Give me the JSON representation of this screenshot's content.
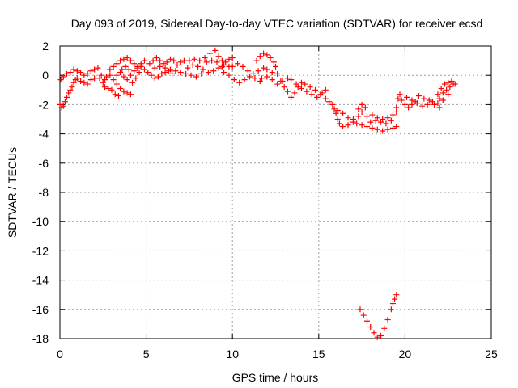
{
  "chart_data": {
    "type": "scatter",
    "title": "Day 093 of 2019, Sidereal Day-to-day VTEC variation (SDTVAR) for receiver ecsd",
    "xlabel": "GPS time / hours",
    "ylabel": "SDTVAR / TECUs",
    "xlim": [
      0,
      25
    ],
    "ylim": [
      -18,
      2
    ],
    "xticks": [
      0,
      5,
      10,
      15,
      20,
      25
    ],
    "yticks": [
      2,
      0,
      -2,
      -4,
      -6,
      -8,
      -10,
      -12,
      -14,
      -16,
      -18
    ],
    "grid": true,
    "series_color": "#ff0000",
    "marker": "plus",
    "series": [
      {
        "name": "SDTVAR",
        "points": [
          [
            0.0,
            -2.0
          ],
          [
            0.1,
            -2.2
          ],
          [
            0.2,
            -2.1
          ],
          [
            0.3,
            -1.8
          ],
          [
            0.4,
            -1.5
          ],
          [
            0.5,
            -1.2
          ],
          [
            0.6,
            -1.0
          ],
          [
            0.7,
            -0.8
          ],
          [
            0.8,
            -0.5
          ],
          [
            0.9,
            -0.3
          ],
          [
            0.05,
            -0.3
          ],
          [
            0.2,
            -0.1
          ],
          [
            0.4,
            0.1
          ],
          [
            0.6,
            0.2
          ],
          [
            0.8,
            0.4
          ],
          [
            1.0,
            0.3
          ],
          [
            1.2,
            0.2
          ],
          [
            1.4,
            0.0
          ],
          [
            1.6,
            0.1
          ],
          [
            1.8,
            0.3
          ],
          [
            2.0,
            0.4
          ],
          [
            2.2,
            0.5
          ],
          [
            1.0,
            -0.2
          ],
          [
            1.2,
            -0.4
          ],
          [
            1.4,
            -0.5
          ],
          [
            1.6,
            -0.6
          ],
          [
            1.8,
            -0.3
          ],
          [
            2.0,
            -0.2
          ],
          [
            2.3,
            -0.2
          ],
          [
            2.6,
            -0.3
          ],
          [
            2.4,
            0.0
          ],
          [
            2.5,
            -0.5
          ],
          [
            2.7,
            -0.1
          ],
          [
            2.9,
            0.0
          ],
          [
            3.1,
            -0.3
          ],
          [
            3.3,
            -0.6
          ],
          [
            3.5,
            -0.9
          ],
          [
            3.7,
            -1.1
          ],
          [
            3.9,
            -1.2
          ],
          [
            4.1,
            -1.3
          ],
          [
            2.6,
            -0.8
          ],
          [
            2.8,
            -0.9
          ],
          [
            3.0,
            -1.0
          ],
          [
            3.2,
            -1.3
          ],
          [
            3.4,
            -1.4
          ],
          [
            2.9,
            0.4
          ],
          [
            3.1,
            0.6
          ],
          [
            3.3,
            0.8
          ],
          [
            3.5,
            1.0
          ],
          [
            3.7,
            1.1
          ],
          [
            3.9,
            1.2
          ],
          [
            4.1,
            1.0
          ],
          [
            4.3,
            0.8
          ],
          [
            4.5,
            0.6
          ],
          [
            4.7,
            0.8
          ],
          [
            4.9,
            1.0
          ],
          [
            3.5,
            0.2
          ],
          [
            3.7,
            -0.1
          ],
          [
            3.9,
            -0.3
          ],
          [
            4.1,
            0.0
          ],
          [
            4.3,
            0.3
          ],
          [
            4.5,
            0.5
          ],
          [
            4.6,
            0.2
          ],
          [
            4.4,
            -0.2
          ],
          [
            4.2,
            -0.5
          ],
          [
            3.3,
            0.0
          ],
          [
            3.6,
            0.4
          ],
          [
            3.8,
            0.6
          ],
          [
            4.0,
            0.4
          ],
          [
            4.7,
            0.6
          ],
          [
            4.9,
            0.4
          ],
          [
            5.1,
            0.2
          ],
          [
            5.3,
            0.0
          ],
          [
            5.5,
            -0.2
          ],
          [
            5.7,
            -0.1
          ],
          [
            5.9,
            0.1
          ],
          [
            6.1,
            0.2
          ],
          [
            6.3,
            0.3
          ],
          [
            6.5,
            0.1
          ],
          [
            5.2,
            0.8
          ],
          [
            5.4,
            1.0
          ],
          [
            5.6,
            1.2
          ],
          [
            5.8,
            1.0
          ],
          [
            6.0,
            0.8
          ],
          [
            6.2,
            0.9
          ],
          [
            6.4,
            1.1
          ],
          [
            6.6,
            1.0
          ],
          [
            6.8,
            0.7
          ],
          [
            7.0,
            0.9
          ],
          [
            7.2,
            1.0
          ],
          [
            5.5,
            0.5
          ],
          [
            5.8,
            0.6
          ],
          [
            6.1,
            0.5
          ],
          [
            6.4,
            0.4
          ],
          [
            6.7,
            0.3
          ],
          [
            7.0,
            0.2
          ],
          [
            7.3,
            0.1
          ],
          [
            7.6,
            0.0
          ],
          [
            7.9,
            -0.1
          ],
          [
            8.2,
            0.1
          ],
          [
            7.4,
            0.5
          ],
          [
            7.7,
            0.7
          ],
          [
            8.0,
            0.6
          ],
          [
            8.3,
            0.4
          ],
          [
            8.6,
            0.2
          ],
          [
            8.9,
            0.3
          ],
          [
            9.2,
            0.5
          ],
          [
            9.5,
            0.7
          ],
          [
            9.8,
            0.6
          ],
          [
            7.5,
            1.0
          ],
          [
            7.8,
            1.1
          ],
          [
            8.1,
            1.0
          ],
          [
            8.4,
            1.2
          ],
          [
            8.7,
            1.5
          ],
          [
            9.0,
            1.7
          ],
          [
            9.2,
            1.3
          ],
          [
            9.4,
            1.0
          ],
          [
            9.6,
            0.9
          ],
          [
            9.8,
            1.1
          ],
          [
            10.0,
            1.2
          ],
          [
            8.5,
            0.9
          ],
          [
            8.8,
            1.0
          ],
          [
            9.1,
            0.9
          ],
          [
            9.4,
            0.6
          ],
          [
            9.5,
            0.2
          ],
          [
            9.8,
            0.0
          ],
          [
            10.1,
            -0.3
          ],
          [
            10.4,
            -0.5
          ],
          [
            10.7,
            -0.3
          ],
          [
            11.0,
            -0.1
          ],
          [
            11.3,
            -0.2
          ],
          [
            11.6,
            -0.4
          ],
          [
            10.0,
            0.6
          ],
          [
            10.3,
            0.8
          ],
          [
            10.6,
            0.6
          ],
          [
            10.9,
            0.3
          ],
          [
            11.2,
            0.1
          ],
          [
            11.5,
            0.3
          ],
          [
            11.8,
            0.5
          ],
          [
            12.0,
            0.4
          ],
          [
            12.3,
            0.2
          ],
          [
            11.4,
            1.0
          ],
          [
            11.6,
            1.3
          ],
          [
            11.8,
            1.5
          ],
          [
            12.0,
            1.4
          ],
          [
            12.2,
            1.2
          ],
          [
            12.4,
            0.9
          ],
          [
            12.5,
            0.6
          ],
          [
            11.7,
            -0.2
          ],
          [
            12.0,
            -0.1
          ],
          [
            12.3,
            -0.3
          ],
          [
            12.6,
            -0.6
          ],
          [
            12.9,
            -0.4
          ],
          [
            13.2,
            -0.2
          ],
          [
            12.6,
            0.1
          ],
          [
            12.8,
            -0.4
          ],
          [
            13.0,
            -0.8
          ],
          [
            13.2,
            -1.1
          ],
          [
            13.4,
            -1.5
          ],
          [
            13.6,
            -1.2
          ],
          [
            13.8,
            -0.8
          ],
          [
            14.0,
            -0.5
          ],
          [
            13.4,
            -0.3
          ],
          [
            13.7,
            -0.6
          ],
          [
            14.0,
            -0.9
          ],
          [
            14.3,
            -1.1
          ],
          [
            14.6,
            -1.3
          ],
          [
            14.9,
            -1.5
          ],
          [
            15.2,
            -1.2
          ],
          [
            15.4,
            -1.0
          ],
          [
            14.2,
            -0.6
          ],
          [
            14.5,
            -0.8
          ],
          [
            14.8,
            -1.0
          ],
          [
            15.1,
            -1.3
          ],
          [
            15.4,
            -1.6
          ],
          [
            15.6,
            -1.8
          ],
          [
            15.8,
            -2.0
          ],
          [
            15.9,
            -2.3
          ],
          [
            16.0,
            -2.6
          ],
          [
            16.1,
            -3.0
          ],
          [
            16.2,
            -3.3
          ],
          [
            16.4,
            -3.5
          ],
          [
            16.7,
            -3.4
          ],
          [
            17.0,
            -3.2
          ],
          [
            16.1,
            -2.4
          ],
          [
            16.4,
            -2.6
          ],
          [
            16.7,
            -2.9
          ],
          [
            17.0,
            -3.0
          ],
          [
            17.3,
            -2.8
          ],
          [
            17.5,
            -2.5
          ],
          [
            17.7,
            -2.2
          ],
          [
            17.5,
            -2.0
          ],
          [
            17.3,
            -2.3
          ],
          [
            17.2,
            -3.3
          ],
          [
            17.5,
            -3.4
          ],
          [
            17.8,
            -3.5
          ],
          [
            18.1,
            -3.6
          ],
          [
            18.4,
            -3.7
          ],
          [
            18.7,
            -3.8
          ],
          [
            19.0,
            -3.7
          ],
          [
            19.3,
            -3.6
          ],
          [
            19.5,
            -3.5
          ],
          [
            17.8,
            -2.8
          ],
          [
            18.1,
            -2.7
          ],
          [
            18.4,
            -2.9
          ],
          [
            18.7,
            -3.0
          ],
          [
            19.0,
            -2.9
          ],
          [
            19.3,
            -2.7
          ],
          [
            19.5,
            -2.5
          ],
          [
            18.0,
            -3.2
          ],
          [
            18.3,
            -3.1
          ],
          [
            18.6,
            -3.2
          ],
          [
            18.9,
            -3.3
          ],
          [
            19.2,
            -3.1
          ],
          [
            19.5,
            -2.2
          ],
          [
            19.6,
            -1.6
          ],
          [
            19.7,
            -1.3
          ],
          [
            19.8,
            -1.7
          ],
          [
            20.0,
            -2.0
          ],
          [
            20.2,
            -2.2
          ],
          [
            20.4,
            -2.0
          ],
          [
            20.6,
            -1.8
          ],
          [
            20.1,
            -1.5
          ],
          [
            20.4,
            -1.7
          ],
          [
            20.7,
            -1.9
          ],
          [
            21.0,
            -2.1
          ],
          [
            21.3,
            -2.0
          ],
          [
            21.6,
            -1.8
          ],
          [
            21.9,
            -1.9
          ],
          [
            22.0,
            -2.2
          ],
          [
            20.8,
            -1.4
          ],
          [
            21.1,
            -1.6
          ],
          [
            21.4,
            -1.7
          ],
          [
            21.7,
            -2.0
          ],
          [
            22.0,
            -1.6
          ],
          [
            22.2,
            -1.2
          ],
          [
            22.4,
            -1.0
          ],
          [
            22.6,
            -0.8
          ],
          [
            22.8,
            -0.6
          ],
          [
            21.9,
            -1.3
          ],
          [
            22.1,
            -0.9
          ],
          [
            22.3,
            -0.6
          ],
          [
            22.5,
            -0.5
          ],
          [
            22.7,
            -0.4
          ],
          [
            22.9,
            -0.6
          ],
          [
            22.5,
            -1.3
          ],
          [
            22.2,
            -1.7
          ],
          [
            17.4,
            -16.0
          ],
          [
            17.6,
            -16.4
          ],
          [
            17.8,
            -16.8
          ],
          [
            18.0,
            -17.2
          ],
          [
            18.2,
            -17.6
          ],
          [
            18.4,
            -17.9
          ],
          [
            18.6,
            -17.8
          ],
          [
            18.8,
            -17.3
          ],
          [
            19.0,
            -16.7
          ],
          [
            19.2,
            -16.0
          ],
          [
            19.3,
            -15.6
          ],
          [
            19.4,
            -15.3
          ],
          [
            19.5,
            -15.0
          ]
        ]
      }
    ]
  }
}
